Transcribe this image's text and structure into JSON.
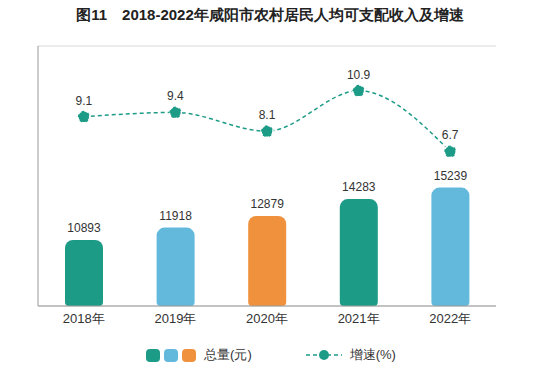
{
  "chart_data": {
    "type": "bar",
    "title": "图11　2018-2022年咸阳市农村居民人均可支配收入及增速",
    "categories": [
      "2018年",
      "2019年",
      "2020年",
      "2021年",
      "2022年"
    ],
    "series": [
      {
        "name": "总量(元)",
        "type": "bar",
        "colors": [
          "#1c9b87",
          "#62b9dc",
          "#f0913d",
          "#1c9b87",
          "#62b9dc"
        ],
        "values": [
          10893,
          11918,
          12879,
          14283,
          15239
        ]
      },
      {
        "name": "增速(%)",
        "type": "line",
        "axis": "y2",
        "color": "#1c9b87",
        "line_style": "dashed",
        "marker": "circle",
        "values": [
          9.1,
          9.4,
          8.1,
          10.9,
          6.7
        ]
      }
    ],
    "ylim": [
      5400,
      27000
    ],
    "yticks": [
      5400,
      8100,
      10800,
      13500,
      16200,
      18900,
      21600,
      24300,
      27000
    ],
    "y2lim": [
      -4,
      14
    ],
    "y2ticks": [
      -4,
      14
    ],
    "grid": true,
    "data_labels": true,
    "tick_labels": "x",
    "legend": "bottom"
  }
}
